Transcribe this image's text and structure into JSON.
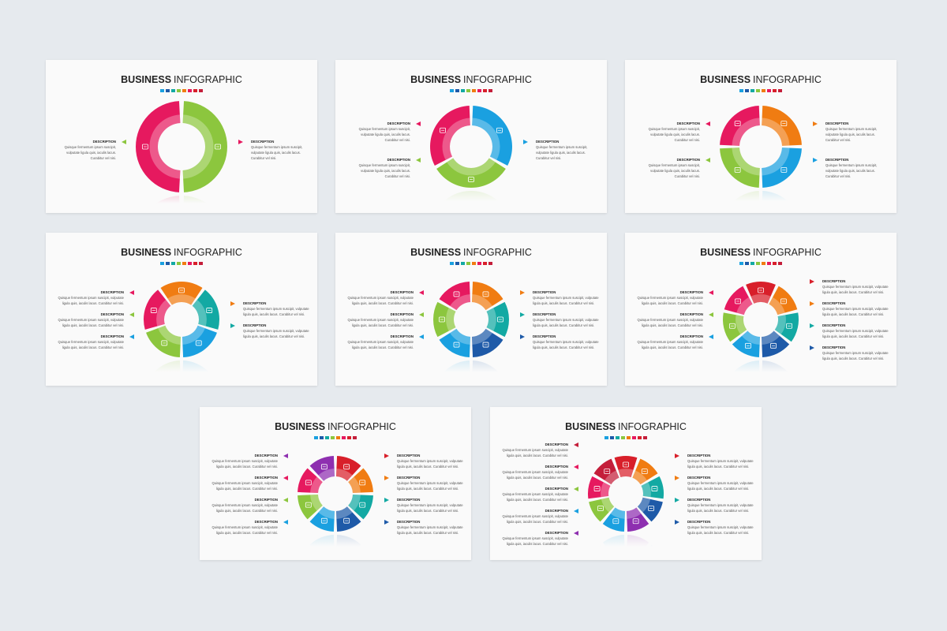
{
  "title_bold": "BUSINESS",
  "title_light": "INFOGRAPHIC",
  "desc_heading": "DESCRIPTION",
  "desc_body_short": "Quisque fermentum ipsum suscipit,\nvulputate ligula quis, iaculis lacus.\nCurabitur vel nisi.",
  "desc_body_long": "Quisque fermentum ipsum suscipit, vulputate\nligula quis, iaculis lacus. Curabitur vel nisi.",
  "colors": {
    "red": "#d81f2a",
    "magenta": "#e6195f",
    "orange": "#f07c12",
    "green": "#8cc63e",
    "blue": "#1aa0e0",
    "teal": "#13a9a3",
    "navy": "#1e5aa8",
    "purple": "#8e2fb0",
    "crimson": "#c41e3a"
  },
  "title_dots": [
    "#1aa0e0",
    "#1e5aa8",
    "#13a9a3",
    "#8cc63e",
    "#f07c12",
    "#e6195f",
    "#d81f2a",
    "#c41e3a"
  ],
  "slides": [
    {
      "segments": [
        "green",
        "magenta"
      ],
      "icons": [
        "monitor-icon",
        "store-icon"
      ],
      "left": [
        "green"
      ],
      "right": [
        "magenta"
      ],
      "body": "short"
    },
    {
      "segments": [
        "blue",
        "green",
        "magenta"
      ],
      "icons": [
        "shop-icon",
        "bank-icon",
        "briefcase-icon"
      ],
      "left": [
        "magenta",
        "green"
      ],
      "right": [
        "blue"
      ],
      "body": "short"
    },
    {
      "segments": [
        "orange",
        "blue",
        "green",
        "magenta"
      ],
      "icons": [
        "cart-icon",
        "calendar-icon",
        "lock-icon",
        "chart-icon"
      ],
      "left": [
        "magenta",
        "green"
      ],
      "right": [
        "orange",
        "blue"
      ],
      "body": "short"
    },
    {
      "segments": [
        "orange",
        "teal",
        "blue",
        "green",
        "magenta"
      ],
      "icons": [
        "store-icon",
        "chat-icon",
        "bank-icon",
        "lock-icon",
        "printer-icon"
      ],
      "left": [
        "magenta",
        "green",
        "blue"
      ],
      "right": [
        "orange",
        "teal"
      ],
      "body": "long"
    },
    {
      "segments": [
        "orange",
        "teal",
        "navy",
        "blue",
        "green",
        "magenta"
      ],
      "icons": [
        "store-icon",
        "chat-icon",
        "bank-icon",
        "calendar-icon",
        "lock-icon",
        "printer-icon"
      ],
      "left": [
        "magenta",
        "green",
        "blue"
      ],
      "right": [
        "orange",
        "teal",
        "navy"
      ],
      "body": "long"
    },
    {
      "segments": [
        "red",
        "orange",
        "teal",
        "navy",
        "blue",
        "green",
        "magenta"
      ],
      "icons": [
        "store-icon",
        "cart-icon",
        "chat-icon",
        "home-icon",
        "calendar-icon",
        "lock-icon",
        "printer-icon"
      ],
      "left": [
        "magenta",
        "green",
        "blue"
      ],
      "right": [
        "red",
        "orange",
        "teal",
        "navy"
      ],
      "body": "long"
    },
    {
      "segments": [
        "red",
        "orange",
        "teal",
        "navy",
        "blue",
        "green",
        "magenta",
        "purple"
      ],
      "icons": [
        "clock-icon",
        "cart-icon",
        "chat-icon",
        "bank-icon",
        "home-icon",
        "calendar-icon",
        "store-icon",
        "printer-icon"
      ],
      "left": [
        "purple",
        "magenta",
        "green",
        "blue"
      ],
      "right": [
        "red",
        "orange",
        "teal",
        "navy"
      ],
      "body": "long"
    },
    {
      "segments": [
        "red",
        "orange",
        "teal",
        "navy",
        "purple",
        "blue",
        "green",
        "magenta",
        "crimson"
      ],
      "icons": [
        "clock-icon",
        "cart-icon",
        "chat-icon",
        "bank-icon",
        "home-icon",
        "calendar-icon",
        "lock-icon",
        "gift-icon",
        "store-icon"
      ],
      "left": [
        "crimson",
        "magenta",
        "green",
        "blue",
        "purple"
      ],
      "right": [
        "red",
        "orange",
        "teal",
        "navy"
      ],
      "body": "long"
    }
  ]
}
